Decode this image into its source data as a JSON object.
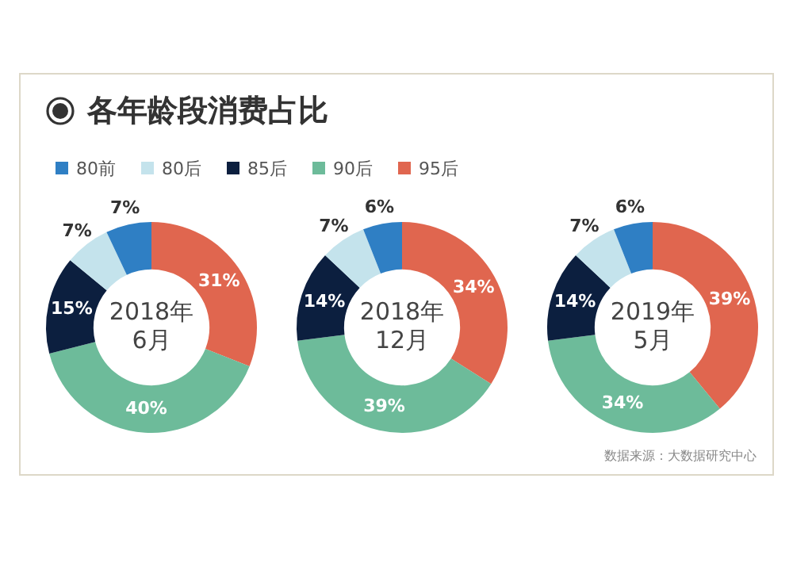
{
  "chart_data": [
    {
      "type": "donut",
      "title": "各年龄段消费占比",
      "legend": "top",
      "annotations": [
        "2018年",
        "6月"
      ],
      "categories": [
        "95后",
        "90后",
        "85后",
        "80后",
        "80前"
      ],
      "values": [
        31,
        40,
        15,
        7,
        7
      ],
      "value_labels": [
        "31%",
        "40%",
        "15%",
        "7%",
        "7%"
      ],
      "colors": [
        "#e0664f",
        "#6dbb9a",
        "#0c1f3f",
        "#c4e3ec",
        "#2f7fc4"
      ]
    },
    {
      "type": "donut",
      "annotations": [
        "2018年",
        "12月"
      ],
      "values": [
        34,
        39,
        14,
        7,
        6
      ],
      "value_labels": [
        "34%",
        "39%",
        "14%",
        "7%",
        "6%"
      ],
      "colors": [
        "#e0664f",
        "#6dbb9a",
        "#0c1f3f",
        "#c4e3ec",
        "#2f7fc4"
      ]
    },
    {
      "type": "donut",
      "annotations": [
        "2019年",
        "5月",
        {
          "text": "数据来源：大数据研究中心"
        }
      ],
      "values": [
        39,
        34,
        14,
        7,
        6
      ],
      "value_labels": [
        "39%",
        "34%",
        "14%",
        "7%",
        "6%"
      ],
      "colors": [
        "#e0664f",
        "#6dbb9a",
        "#0c1f3f",
        "#c4e3ec",
        "#2f7fc4"
      ]
    }
  ]
}
